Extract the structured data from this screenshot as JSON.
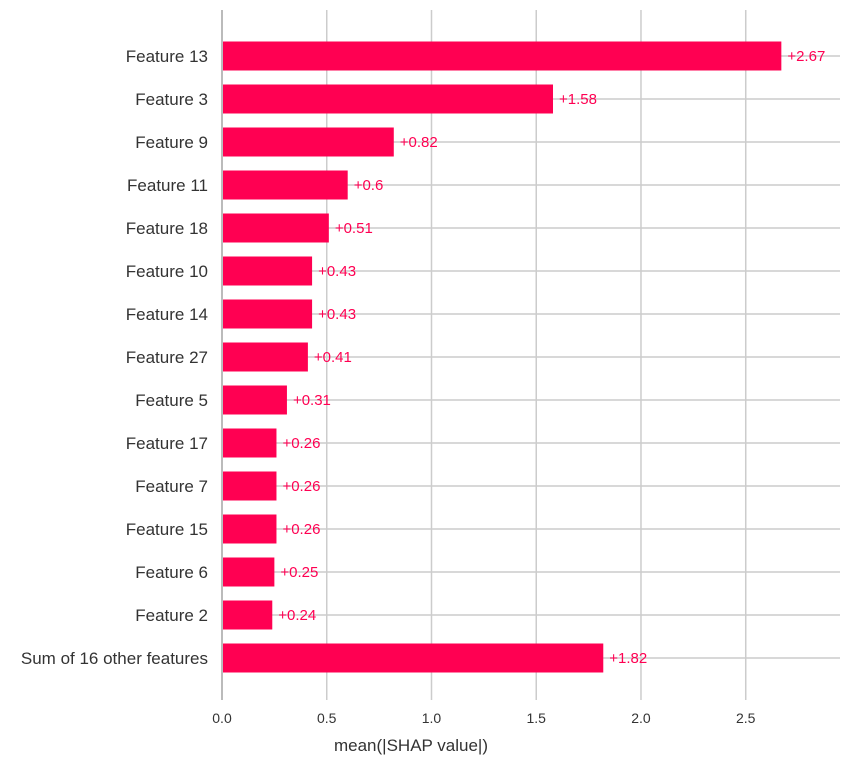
{
  "chart_data": {
    "type": "bar",
    "orientation": "horizontal",
    "categories": [
      "Feature 13",
      "Feature 3",
      "Feature 9",
      "Feature 11",
      "Feature 18",
      "Feature 10",
      "Feature 14",
      "Feature 27",
      "Feature 5",
      "Feature 17",
      "Feature 7",
      "Feature 15",
      "Feature 6",
      "Feature 2",
      "Sum of 16 other features"
    ],
    "values": [
      2.67,
      1.58,
      0.82,
      0.6,
      0.51,
      0.43,
      0.43,
      0.41,
      0.31,
      0.26,
      0.26,
      0.26,
      0.25,
      0.24,
      1.82
    ],
    "value_labels": [
      "+2.67",
      "+1.58",
      "+0.82",
      "+0.6",
      "+0.51",
      "+0.43",
      "+0.43",
      "+0.41",
      "+0.31",
      "+0.26",
      "+0.26",
      "+0.26",
      "+0.25",
      "+0.24",
      "+1.82"
    ],
    "xlabel": "mean(|SHAP value|)",
    "xlim": [
      0,
      2.95
    ],
    "xticks": [
      0.0,
      0.5,
      1.0,
      1.5,
      2.0,
      2.5
    ],
    "xtick_labels": [
      "0.0",
      "0.5",
      "1.0",
      "1.5",
      "2.0",
      "2.5"
    ],
    "grid": true,
    "colors": {
      "bar": "#ff0052",
      "label": "#ff0052",
      "grid": "#cccccc",
      "axis": "#bbbbbb",
      "text": "#333333"
    }
  }
}
